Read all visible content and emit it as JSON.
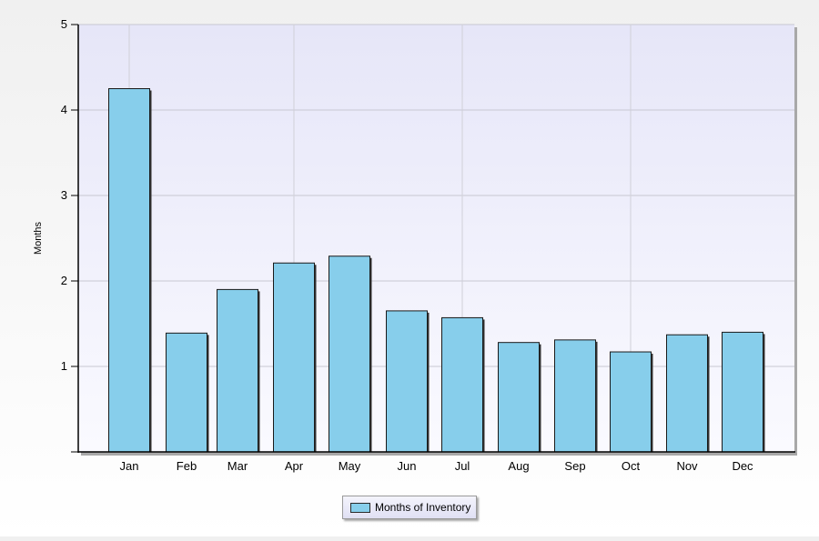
{
  "chart_data": {
    "type": "bar",
    "title": "",
    "xlabel": "",
    "ylabel": "Months",
    "categories": [
      "Jan",
      "Feb",
      "Mar",
      "Apr",
      "May",
      "Jun",
      "Jul",
      "Aug",
      "Sep",
      "Oct",
      "Nov",
      "Dec"
    ],
    "series": [
      {
        "name": "Months of Inventory",
        "values": [
          4.25,
          1.39,
          1.9,
          2.21,
          2.29,
          1.65,
          1.57,
          1.28,
          1.31,
          1.17,
          1.37,
          1.4
        ],
        "color": "#87ceeb"
      }
    ],
    "ylim": [
      0,
      5
    ],
    "yticks": [
      1,
      2,
      3,
      4,
      5
    ],
    "grid": true,
    "legend_position": "bottom-center",
    "plot_background": "#e6e6f8"
  }
}
